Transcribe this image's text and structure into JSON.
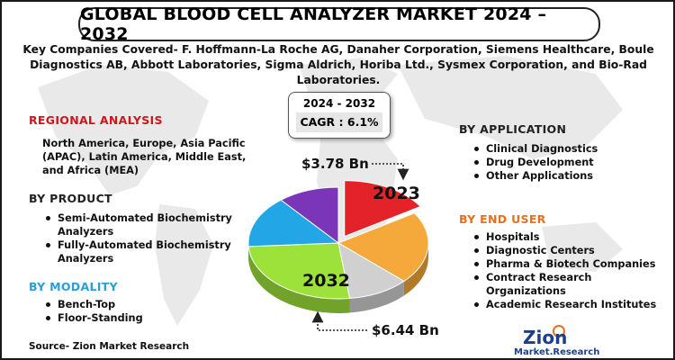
{
  "title": "GLOBAL BLOOD CELL ANALYZER MARKET 2024 – 2032",
  "companies": "Key Companies Covered- F. Hoffmann-La Roche AG, Danaher Corporation, Siemens Healthcare, Boule Diagnostics AB, Abbott Laboratories, Sigma Aldrich, Horiba Ltd., Sysmex Corporation, and Bio-Rad Laboratories.",
  "cagr": {
    "years": "2024 - 2032",
    "value": "CAGR : 6.1%"
  },
  "regional": {
    "heading": "REGIONAL ANALYSIS",
    "text": "North America, Europe, Asia Pacific (APAC), Latin America, Middle East, and Africa (MEA)"
  },
  "product": {
    "heading": "BY PRODUCT",
    "items": [
      "Semi-Automated Biochemistry Analyzers",
      "Fully-Automated Biochemistry Analyzers"
    ]
  },
  "modality": {
    "heading": "BY MODALITY",
    "items": [
      "Bench-Top",
      "Floor-Standing"
    ]
  },
  "application": {
    "heading": "BY APPLICATION",
    "items": [
      "Clinical Diagnostics",
      "Drug Development",
      "Other Applications"
    ]
  },
  "end_user": {
    "heading": "BY END USER",
    "items": [
      "Hospitals",
      "Diagnostic Centers",
      "Pharma & Biotech Companies",
      "Contract Research Organizations",
      "Academic Research Institutes"
    ]
  },
  "source": "Source- Zion Market Research",
  "logo": {
    "name": "Zion",
    "sub": "Market.Research"
  },
  "chart_data": {
    "type": "pie",
    "title": "",
    "segments": [
      {
        "label": "2023",
        "share": 0.16,
        "color": "#e3222a"
      },
      {
        "label": "",
        "share": 0.21,
        "color": "#f6a93b"
      },
      {
        "label": "",
        "share": 0.11,
        "color": "#d0d0d0"
      },
      {
        "label": "2032",
        "share": 0.26,
        "color": "#9de23a"
      },
      {
        "label": "",
        "share": 0.15,
        "color": "#22a6e6"
      },
      {
        "label": "",
        "share": 0.11,
        "color": "#7a35b8"
      }
    ],
    "annotations": [
      {
        "label": "$3.78 Bn",
        "year": "2023"
      },
      {
        "label": "$6.44 Bn",
        "year": "2032"
      }
    ]
  }
}
